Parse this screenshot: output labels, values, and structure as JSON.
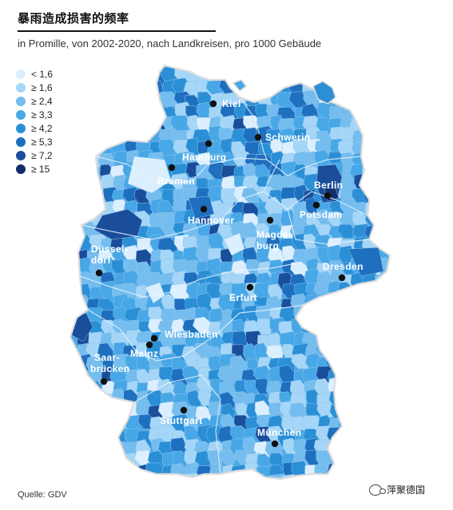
{
  "title": "暴雨造成损害的频率",
  "subtitle": "in Promille, von 2002-2020, nach Landkreisen, pro 1000 Gebäude",
  "legend": [
    {
      "label": "< 1,6",
      "color": "#dcefff"
    },
    {
      "label": "≥ 1,6",
      "color": "#a6d6f7"
    },
    {
      "label": "≥ 2,4",
      "color": "#74bdee"
    },
    {
      "label": "≥ 3,3",
      "color": "#48a7e6"
    },
    {
      "label": "≥ 4,2",
      "color": "#2b8fd6"
    },
    {
      "label": "≥ 5,3",
      "color": "#1f6fbf"
    },
    {
      "label": "≥ 7,2",
      "color": "#1a4d9a"
    },
    {
      "label": "≥ 15",
      "color": "#152c6b"
    }
  ],
  "cities": [
    {
      "name": "Kiel",
      "key": "kiel"
    },
    {
      "name": "Hamburg",
      "key": "hamburg"
    },
    {
      "name": "Schwerin",
      "key": "schwerin"
    },
    {
      "name": "Bremen",
      "key": "bremen"
    },
    {
      "name": "Berlin",
      "key": "berlin"
    },
    {
      "name": "Potsdam",
      "key": "potsdam"
    },
    {
      "name": "Hannover",
      "key": "hannover"
    },
    {
      "name": "Magde-",
      "key": "magdeburg_1"
    },
    {
      "name": "burg",
      "key": "magdeburg_2"
    },
    {
      "name": "Düssel-",
      "key": "duesseldorf_1"
    },
    {
      "name": "dorf",
      "key": "duesseldorf_2"
    },
    {
      "name": "Dresden",
      "key": "dresden"
    },
    {
      "name": "Erfurt",
      "key": "erfurt"
    },
    {
      "name": "Wiesbaden",
      "key": "wiesbaden"
    },
    {
      "name": "Mainz",
      "key": "mainz"
    },
    {
      "name": "Saar-",
      "key": "saarbruecken_1"
    },
    {
      "name": "brücken",
      "key": "saarbruecken_2"
    },
    {
      "name": "Stuttgart",
      "key": "stuttgart"
    },
    {
      "name": "München",
      "key": "muenchen"
    }
  ],
  "source": "Quelle: GDV",
  "watermark": "萍聚德国"
}
